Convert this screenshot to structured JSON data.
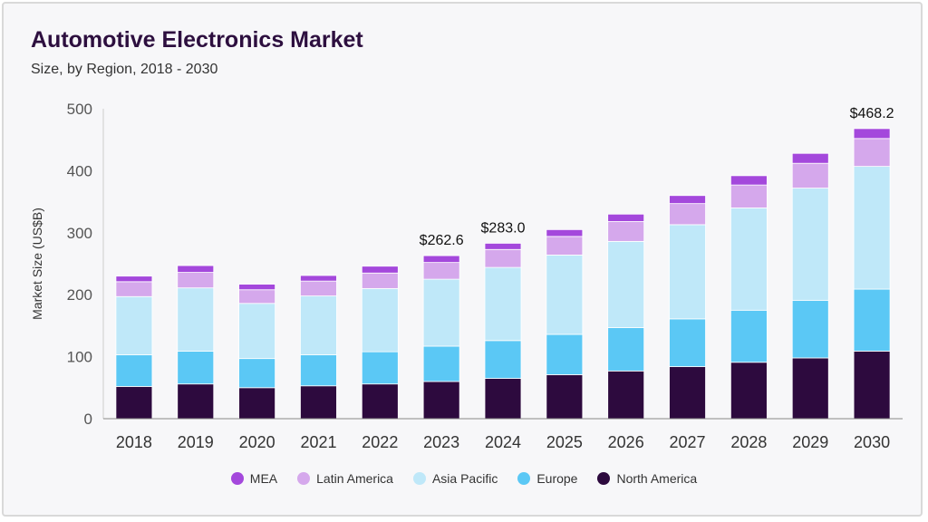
{
  "header": {
    "title": "Automotive Electronics Market",
    "subtitle": "Size, by Region, 2018 - 2030"
  },
  "chart_data": {
    "type": "bar",
    "stacked": true,
    "title": "Automotive Electronics Market",
    "subtitle": "Size, by Region, 2018 - 2030",
    "xlabel": "",
    "ylabel": "Market Size (US$B)",
    "ylim": [
      0,
      500
    ],
    "yticks": [
      0,
      100,
      200,
      300,
      400,
      500
    ],
    "grid": false,
    "legend_position": "bottom",
    "categories": [
      "2018",
      "2019",
      "2020",
      "2021",
      "2022",
      "2023",
      "2024",
      "2025",
      "2026",
      "2027",
      "2028",
      "2029",
      "2030"
    ],
    "series": [
      {
        "name": "North America",
        "color": "#2d0a3e",
        "values": [
          52,
          56,
          50,
          53,
          56,
          60,
          65,
          71,
          77,
          84,
          91,
          98,
          109
        ]
      },
      {
        "name": "Europe",
        "color": "#5bc8f5",
        "values": [
          51,
          53,
          47,
          50,
          52,
          57,
          61,
          65,
          70,
          77,
          84,
          93,
          100
        ]
      },
      {
        "name": "Asia Pacific",
        "color": "#bfe8f9",
        "values": [
          94,
          102,
          89,
          95,
          102,
          108,
          118,
          128,
          139,
          152,
          165,
          181,
          198
        ]
      },
      {
        "name": "Latin America",
        "color": "#d5a8ec",
        "values": [
          24,
          25,
          22,
          24,
          25,
          27,
          29,
          30,
          32,
          34,
          37,
          40,
          45
        ]
      },
      {
        "name": "MEA",
        "color": "#a448dc",
        "values": [
          9,
          11,
          9,
          9,
          11,
          11,
          10,
          11,
          12,
          13,
          15,
          16,
          16
        ]
      }
    ],
    "data_labels": [
      {
        "category": "2023",
        "text": "$262.6"
      },
      {
        "category": "2024",
        "text": "$283.0"
      },
      {
        "category": "2030",
        "text": "$468.2"
      }
    ],
    "legend_order": [
      "MEA",
      "Latin America",
      "Asia Pacific",
      "Europe",
      "North America"
    ]
  }
}
